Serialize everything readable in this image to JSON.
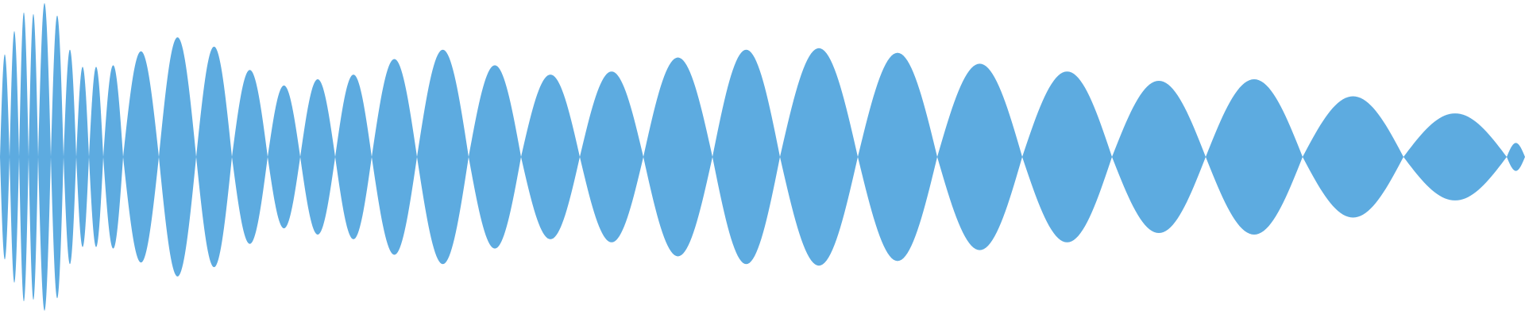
{
  "chart_data": {
    "type": "area",
    "title": "",
    "xlabel": "",
    "ylabel": "",
    "grid": false,
    "legend": "none",
    "ylim": [
      -1,
      1
    ],
    "xlim": [
      0,
      1920
    ],
    "color": "#5DABE0",
    "lobe_boundaries": [
      0,
      12,
      24,
      36,
      48,
      64,
      80,
      96,
      112,
      130,
      155,
      200,
      247,
      292,
      337,
      378,
      422,
      468,
      525,
      590,
      656,
      730,
      810,
      897,
      982,
      1080,
      1180,
      1287,
      1400,
      1518,
      1640,
      1767,
      1897,
      1920
    ],
    "lobe_peaks": [
      0.66,
      0.81,
      0.93,
      0.92,
      0.99,
      0.91,
      0.69,
      0.58,
      0.58,
      0.59,
      0.68,
      0.77,
      0.71,
      0.56,
      0.46,
      0.5,
      0.53,
      0.63,
      0.69,
      0.59,
      0.53,
      0.55,
      0.64,
      0.69,
      0.7,
      0.67,
      0.6,
      0.55,
      0.49,
      0.5,
      0.39,
      0.28,
      0.09
    ]
  }
}
